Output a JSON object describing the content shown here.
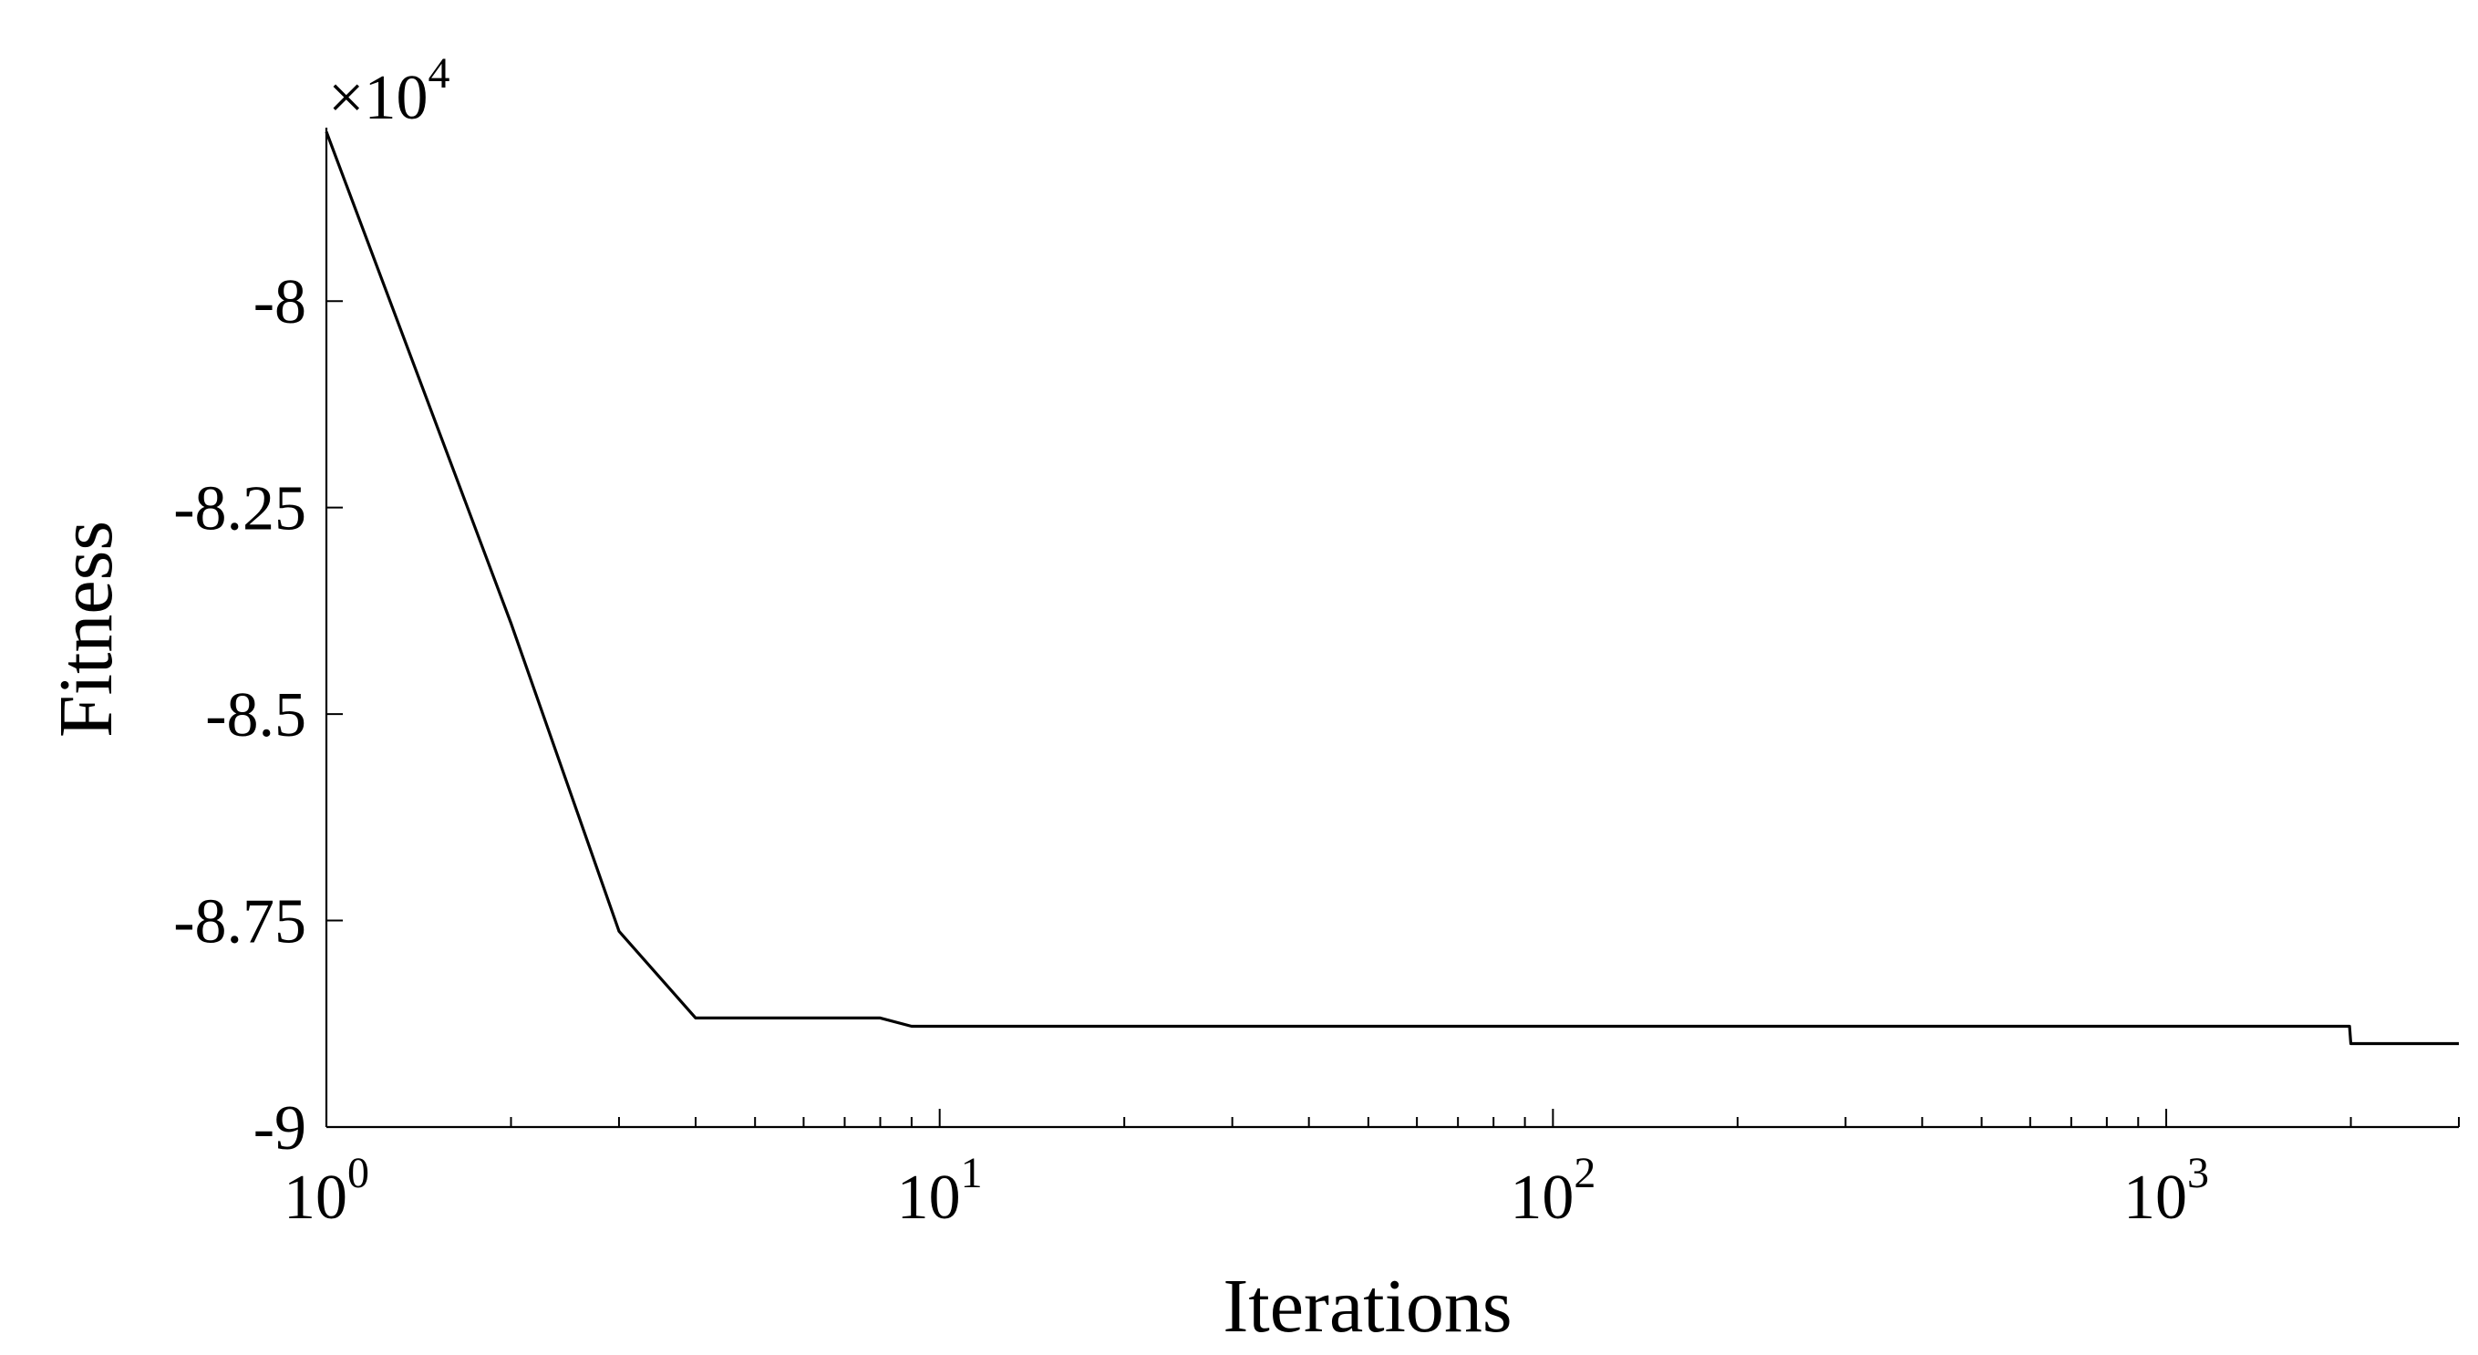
{
  "chart_data": {
    "type": "line",
    "title": "",
    "xlabel": "Iterations",
    "ylabel": "Fitness",
    "x_scale": "log",
    "xlim": [
      1,
      3000
    ],
    "ylim": [
      -90000,
      -77900
    ],
    "y_multiplier": {
      "base": "10",
      "exponent": "4"
    },
    "x_ticks": [
      {
        "value": 1,
        "base": "10",
        "exp": "0"
      },
      {
        "value": 10,
        "base": "10",
        "exp": "1"
      },
      {
        "value": 100,
        "base": "10",
        "exp": "2"
      },
      {
        "value": 1000,
        "base": "10",
        "exp": "3"
      }
    ],
    "y_ticks": [
      {
        "value": -80000,
        "label": "-8"
      },
      {
        "value": -82500,
        "label": "-8.25"
      },
      {
        "value": -85000,
        "label": "-8.5"
      },
      {
        "value": -87500,
        "label": "-8.75"
      },
      {
        "value": -90000,
        "label": "-9"
      }
    ],
    "grid": false,
    "series": [
      {
        "color": "#000000",
        "x": [
          1,
          2,
          3,
          4,
          8,
          9,
          1990,
          2000,
          3000
        ],
        "y": [
          -77950,
          -83900,
          -87630,
          -88680,
          -88680,
          -88780,
          -88780,
          -88990,
          -88990
        ]
      }
    ]
  }
}
